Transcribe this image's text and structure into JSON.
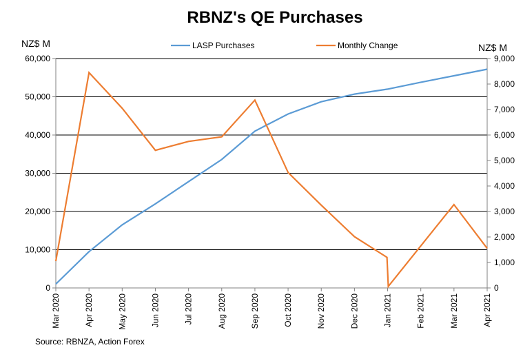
{
  "chart_data": {
    "type": "line",
    "title": "RBNZ's QE Purchases",
    "y_left_label": "NZ$ M",
    "y_right_label": "NZ$ M",
    "y_left_lim": [
      0,
      60000
    ],
    "y_left_ticks": [
      "0",
      "10,000",
      "20,000",
      "30,000",
      "40,000",
      "50,000",
      "60,000"
    ],
    "y_right_lim": [
      0,
      9000
    ],
    "y_right_ticks": [
      "0",
      "1,000",
      "2,000",
      "3,000",
      "4,000",
      "5,000",
      "6,000",
      "7,000",
      "8,000",
      "9,000"
    ],
    "categories": [
      "Mar 2020",
      "Apr 2020",
      "May 2020",
      "Jun 2020",
      "Jul 2020",
      "Aug 2020",
      "Sep 2020",
      "Oct 2020",
      "Nov 2020",
      "Dec 2020",
      "Jan 2021",
      "Feb 2021",
      "Mar 2021",
      "Apr 2021"
    ],
    "grid": true,
    "legend_position": "top-center",
    "series": [
      {
        "name": "LASP Purchases",
        "axis": "left",
        "color": "#5B9BD5",
        "values": [
          1000,
          9500,
          16500,
          22000,
          27800,
          33600,
          41000,
          45500,
          48700,
          50700,
          52000,
          53800,
          55500,
          57200
        ]
      },
      {
        "name": "Monthly Change",
        "axis": "right",
        "color": "#ED7D31",
        "x": [
          0,
          1,
          2,
          3,
          4,
          5,
          6,
          7,
          8,
          9,
          9.98,
          10.02,
          11,
          12,
          13
        ],
        "values": [
          1050,
          8450,
          7050,
          5400,
          5750,
          5930,
          7370,
          4530,
          3250,
          2010,
          1200,
          60,
          1650,
          3270,
          1550
        ]
      }
    ]
  },
  "source": "Source: RBNZA,  Action Forex"
}
